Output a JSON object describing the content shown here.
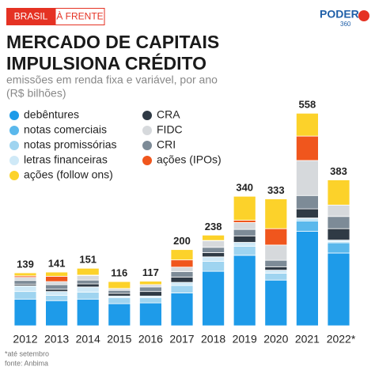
{
  "header": {
    "tag_left": "BRASIL",
    "tag_right": "À FRENTE",
    "logo": "PODER",
    "logo_sub": "360"
  },
  "chart_data": {
    "type": "stacked-bar",
    "title_lines": [
      "MERCADO DE CAPITAIS",
      "IMPULSIONA CRÉDITO"
    ],
    "subtitle_lines": [
      "emissões em renda fixa e variável, por ano",
      "(R$ bilhões)"
    ],
    "categories": [
      "2012",
      "2013",
      "2014",
      "2015",
      "2016",
      "2017",
      "2018",
      "2019",
      "2020",
      "2021",
      "2022*"
    ],
    "totals": [
      139,
      141,
      151,
      116,
      117,
      200,
      238,
      340,
      333,
      558,
      383
    ],
    "ylim": [
      0,
      600
    ],
    "series": [
      {
        "name": "debêntures",
        "color": "#1e9be9",
        "values": [
          70,
          66,
          70,
          58,
          60,
          86,
          143,
          185,
          120,
          248,
          191
        ]
      },
      {
        "name": "notas comerciais",
        "color": "#5ab8ec",
        "values": [
          0,
          0,
          0,
          0,
          0,
          0,
          0,
          0,
          0,
          27,
          27
        ]
      },
      {
        "name": "notas promissórias",
        "color": "#9fd4f0",
        "values": [
          20,
          14,
          18,
          16,
          14,
          20,
          26,
          24,
          18,
          5,
          3
        ]
      },
      {
        "name": "letras financeiras",
        "color": "#cfe9f7",
        "values": [
          15,
          10,
          14,
          4,
          4,
          8,
          12,
          10,
          8,
          3,
          4
        ]
      },
      {
        "name": "CRA",
        "color": "#2f3a45",
        "values": [
          4,
          6,
          8,
          7,
          12,
          14,
          11,
          17,
          9,
          24,
          30
        ]
      },
      {
        "name": "CRI",
        "color": "#7d8b97",
        "values": [
          10,
          12,
          10,
          8,
          12,
          14,
          14,
          17,
          17,
          35,
          32
        ]
      },
      {
        "name": "FIDC",
        "color": "#d6d9dc",
        "values": [
          8,
          8,
          12,
          5,
          6,
          12,
          17,
          18,
          40,
          92,
          30
        ]
      },
      {
        "name": "ações (IPOs)",
        "color": "#f0561d",
        "values": [
          4,
          14,
          1,
          0,
          0,
          19,
          1,
          6,
          43,
          64,
          0
        ]
      },
      {
        "name": "ações (follow ons)",
        "color": "#fcd22a",
        "values": [
          8,
          11,
          18,
          18,
          9,
          27,
          14,
          63,
          78,
          60,
          66
        ]
      }
    ],
    "notes": [
      "*até setembro",
      "fonte: Anbima"
    ]
  }
}
